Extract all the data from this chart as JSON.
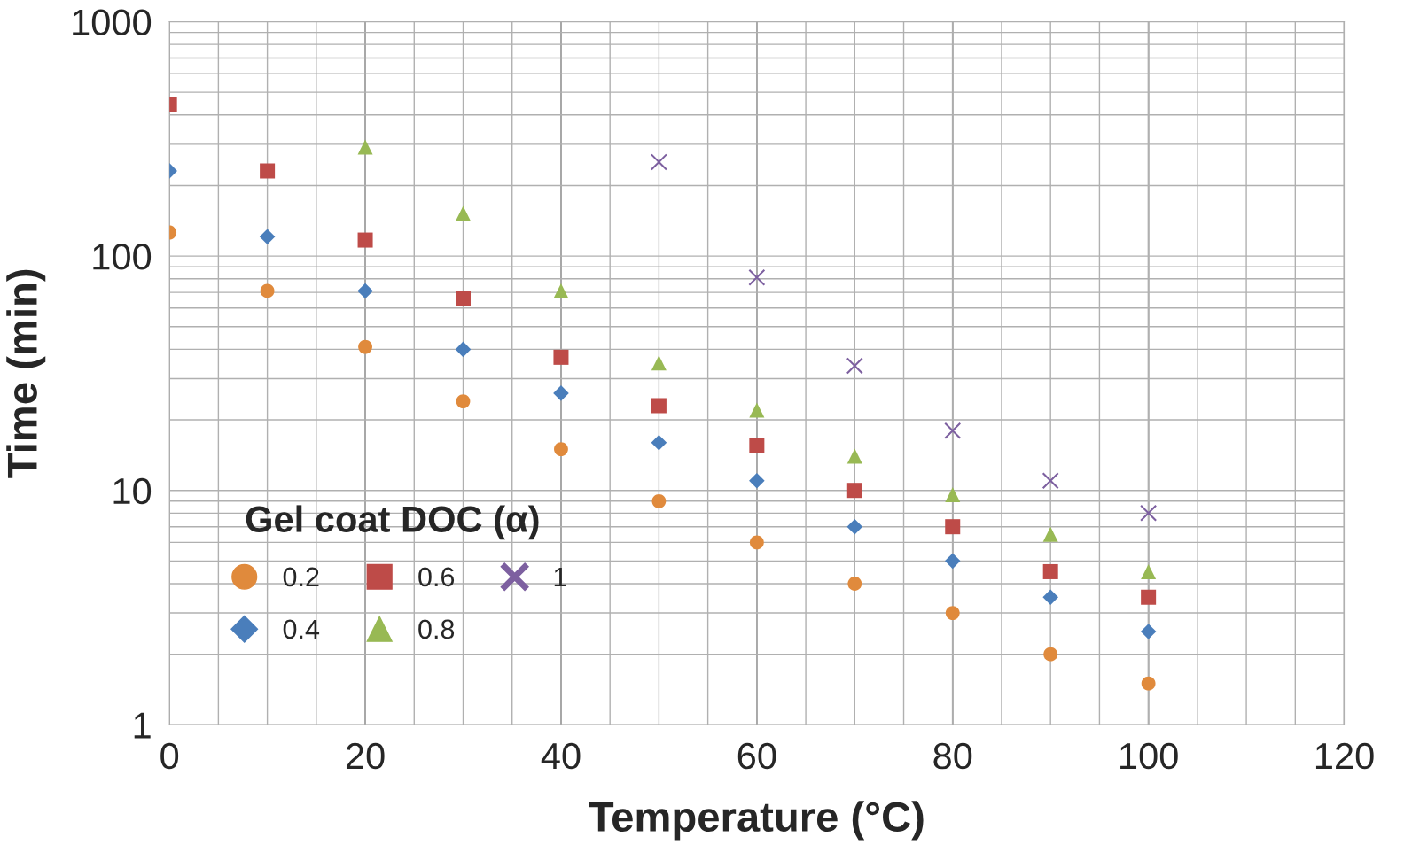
{
  "chart_data": {
    "type": "scatter",
    "xlabel": "Temperature (°C)",
    "ylabel": "Time (min)",
    "legend_title": "Gel coat DOC (α)",
    "legend": "bottom left",
    "log": "y",
    "grid": true,
    "xlim": [
      0,
      120
    ],
    "ylim": [
      1,
      1000
    ],
    "xticks": [
      0,
      {
        "value": 5,
        "label": null
      },
      {
        "value": 10,
        "label": null
      },
      {
        "value": 15,
        "label": null
      },
      20,
      {
        "value": 25,
        "label": null
      },
      {
        "value": 30,
        "label": null
      },
      {
        "value": 35,
        "label": null
      },
      40,
      {
        "value": 45,
        "label": null
      },
      {
        "value": 50,
        "label": null
      },
      {
        "value": 55,
        "label": null
      },
      60,
      {
        "value": 65,
        "label": null
      },
      {
        "value": 70,
        "label": null
      },
      {
        "value": 75,
        "label": null
      },
      80,
      {
        "value": 85,
        "label": null
      },
      {
        "value": 90,
        "label": null
      },
      {
        "value": 95,
        "label": null
      },
      100,
      {
        "value": 105,
        "label": null
      },
      {
        "value": 110,
        "label": null
      },
      {
        "value": 115,
        "label": null
      },
      120
    ],
    "yticks": [
      1,
      {
        "value": 2,
        "label": null
      },
      {
        "value": 3,
        "label": null
      },
      {
        "value": 4,
        "label": null
      },
      {
        "value": 5,
        "label": null
      },
      {
        "value": 6,
        "label": null
      },
      {
        "value": 7,
        "label": null
      },
      {
        "value": 8,
        "label": null
      },
      {
        "value": 9,
        "label": null
      },
      10,
      {
        "value": 20,
        "label": null
      },
      {
        "value": 30,
        "label": null
      },
      {
        "value": 40,
        "label": null
      },
      {
        "value": 50,
        "label": null
      },
      {
        "value": 60,
        "label": null
      },
      {
        "value": 70,
        "label": null
      },
      {
        "value": 80,
        "label": null
      },
      {
        "value": 90,
        "label": null
      },
      100,
      {
        "value": 200,
        "label": null
      },
      {
        "value": 300,
        "label": null
      },
      {
        "value": 400,
        "label": null
      },
      {
        "value": 500,
        "label": null
      },
      {
        "value": 600,
        "label": null
      },
      {
        "value": 700,
        "label": null
      },
      {
        "value": 800,
        "label": null
      },
      {
        "value": 900,
        "label": null
      },
      1000
    ],
    "series": [
      {
        "name": "0.2",
        "color": "#e08a3c",
        "marker": "circle",
        "x": [
          0,
          10,
          20,
          30,
          40,
          50,
          60,
          70,
          80,
          90,
          100
        ],
        "values": [
          126,
          71,
          41,
          24,
          15,
          9,
          6,
          4,
          3,
          2,
          1.5
        ]
      },
      {
        "name": "0.4",
        "color": "#4a7ebb",
        "marker": "diamond",
        "x": [
          0,
          10,
          20,
          30,
          40,
          50,
          60,
          70,
          80,
          90,
          100
        ],
        "values": [
          231,
          121,
          71,
          40,
          26,
          16,
          11,
          7,
          5,
          3.5,
          2.5
        ]
      },
      {
        "name": "0.6",
        "color": "#be4b48",
        "marker": "square",
        "x": [
          0,
          10,
          20,
          30,
          40,
          50,
          60,
          70,
          80,
          90,
          100
        ],
        "values": [
          444,
          231,
          117,
          66,
          37,
          23,
          15.5,
          10,
          7,
          4.5,
          3.5
        ]
      },
      {
        "name": "0.8",
        "color": "#98b954",
        "marker": "triangle",
        "x": [
          20,
          30,
          40,
          50,
          60,
          70,
          80,
          90,
          100
        ],
        "values": [
          292,
          152,
          71,
          35,
          22,
          14,
          9.6,
          6.5,
          4.5
        ]
      },
      {
        "name": "1",
        "color": "#7d60a0",
        "marker": "cross",
        "x": [
          50,
          60,
          70,
          80,
          90,
          100
        ],
        "values": [
          252,
          81,
          34,
          18,
          11,
          8
        ]
      }
    ]
  }
}
